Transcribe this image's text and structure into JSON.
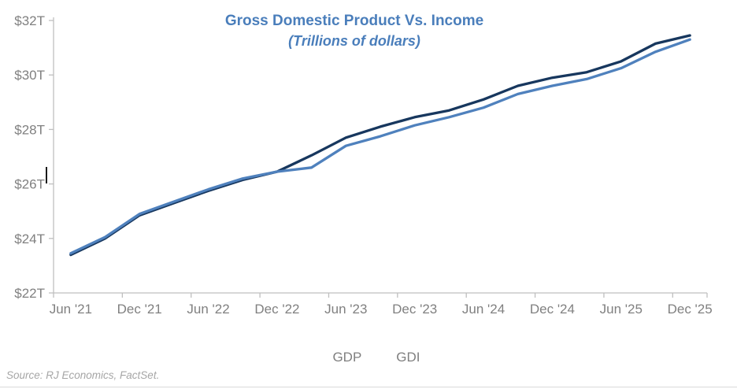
{
  "header": {
    "title": "Gross Domestic Product Vs. Income",
    "subtitle": "(Trillions of dollars)"
  },
  "legend": {
    "items": [
      "GDP",
      "GDI"
    ]
  },
  "footer": {
    "source": "Source: RJ Economics, FactSet."
  },
  "colors": {
    "gdp_line": "#17375E",
    "gdi_line": "#4F81BD",
    "title_text": "#4A7EBB",
    "axis_text": "#808080",
    "axis_line": "#BFBFBF",
    "legend_text": "#7F7F7F",
    "source_text": "#A6A6A6",
    "divider": "#D9D9D9"
  },
  "chart_data": {
    "type": "line",
    "title": "Gross Domestic Product Vs. Income",
    "subtitle": "(Trillions of dollars)",
    "x": [
      "Jun '21",
      "Sep '21",
      "Dec '21",
      "Mar '22",
      "Jun '22",
      "Sep '22",
      "Dec '22",
      "Mar '23",
      "Jun '23",
      "Sep '23",
      "Dec '23",
      "Mar '24",
      "Jun '24",
      "Sep '24",
      "Dec '24",
      "Mar '25",
      "Jun '25",
      "Sep '25",
      "Dec '25"
    ],
    "x_tick_labels": [
      "Jun '21",
      "Dec '21",
      "Jun '22",
      "Dec '22",
      "Jun '23",
      "Dec '23",
      "Jun '24",
      "Dec '24",
      "Jun '25",
      "Dec '25"
    ],
    "y_ticks": [
      22,
      24,
      26,
      28,
      30,
      32
    ],
    "y_tick_labels": [
      "$22T",
      "$24T",
      "$26T",
      "$28T",
      "$30T",
      "$32T"
    ],
    "ylim": [
      22,
      32
    ],
    "grid": false,
    "legend_position": "bottom",
    "series": [
      {
        "name": "GDP",
        "color": "#17375E",
        "values": [
          23.4,
          24.0,
          24.85,
          25.3,
          25.75,
          26.15,
          26.45,
          27.05,
          27.7,
          28.1,
          28.45,
          28.7,
          29.1,
          29.6,
          29.9,
          30.1,
          30.5,
          31.15,
          31.45
        ]
      },
      {
        "name": "GDI",
        "color": "#4F81BD",
        "values": [
          23.45,
          24.05,
          24.9,
          25.35,
          25.8,
          26.2,
          26.45,
          26.6,
          27.4,
          27.75,
          28.15,
          28.45,
          28.8,
          29.3,
          29.6,
          29.85,
          30.25,
          30.85,
          31.3
        ]
      }
    ]
  }
}
